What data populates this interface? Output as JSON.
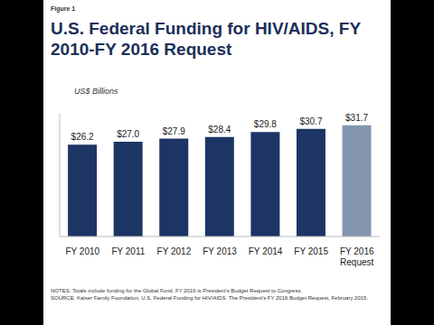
{
  "chart_data": {
    "type": "bar",
    "figure_label": "Figure 1",
    "title": "U.S. Federal Funding for HIV/AIDS, FY 2010-FY 2016 Request",
    "subtitle": "US$ Billions",
    "categories": [
      "FY 2010",
      "FY 2011",
      "FY 2012",
      "FY 2013",
      "FY 2014",
      "FY 2015",
      "FY 2016\nRequest"
    ],
    "values": [
      26.2,
      27.0,
      27.9,
      28.4,
      29.8,
      30.7,
      31.7
    ],
    "value_labels": [
      "$26.2",
      "$27.0",
      "$27.9",
      "$28.4",
      "$29.8",
      "$30.7",
      "$31.7"
    ],
    "colors": [
      "#1c3564",
      "#1c3564",
      "#1c3564",
      "#1c3564",
      "#1c3564",
      "#1c3564",
      "#8496b0"
    ],
    "ylim": [
      0,
      35
    ],
    "data_labels": true,
    "tick_labels": "x",
    "notes": "NOTES: Totals include funding for the Global Fund. FY 2016 is President's Budget Request to Congress.",
    "source": "SOURCE: Kaiser Family Foundation, U.S. Federal Funding for HIV/AIDS: The President's FY 2016 Budget Request, February 2015."
  }
}
